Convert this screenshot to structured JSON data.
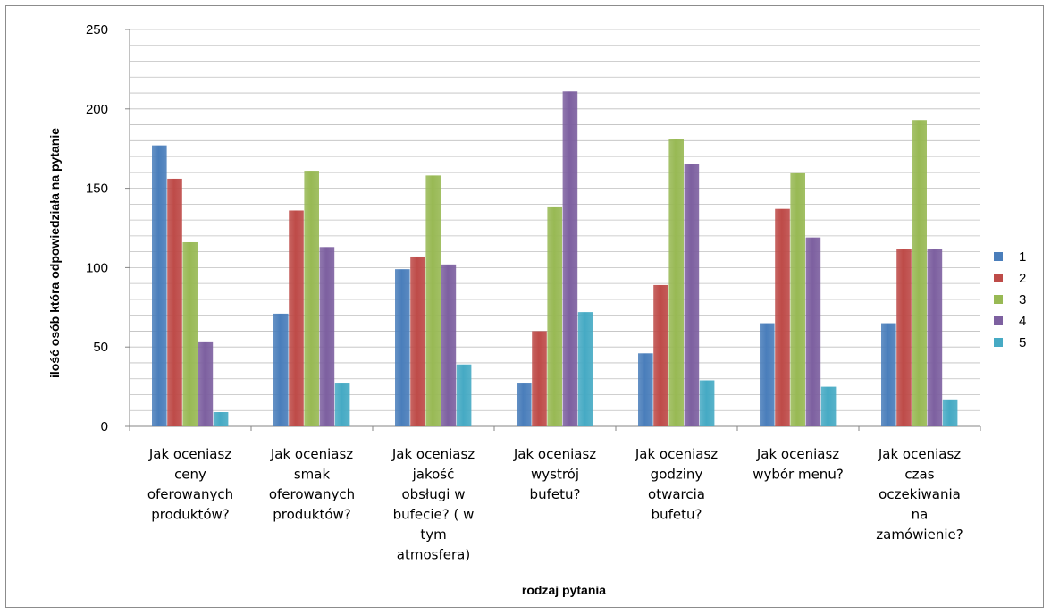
{
  "chart_data": {
    "type": "bar",
    "categories": [
      [
        "Jak oceniasz",
        "ceny",
        "oferowanych",
        "produktów?"
      ],
      [
        "Jak oceniasz",
        "smak",
        "oferowanych",
        "produktów?"
      ],
      [
        "Jak oceniasz",
        "jakość",
        "obsługi w",
        "bufecie? ( w",
        "tym",
        "atmosfera)"
      ],
      [
        "Jak oceniasz",
        "wystrój",
        "bufetu?"
      ],
      [
        "Jak oceniasz",
        "godziny",
        "otwarcia",
        "bufetu?"
      ],
      [
        "Jak oceniasz",
        "wybór menu?"
      ],
      [
        "Jak oceniasz",
        "czas",
        "oczekiwania",
        "na",
        "zamówienie?"
      ]
    ],
    "series": [
      {
        "name": "1",
        "color": "#4a7ebb",
        "values": [
          177,
          71,
          99,
          27,
          46,
          65,
          65
        ]
      },
      {
        "name": "2",
        "color": "#be4b48",
        "values": [
          156,
          136,
          107,
          60,
          89,
          137,
          112
        ]
      },
      {
        "name": "3",
        "color": "#98b954",
        "values": [
          116,
          161,
          158,
          138,
          181,
          160,
          193
        ]
      },
      {
        "name": "4",
        "color": "#7d60a0",
        "values": [
          53,
          113,
          102,
          211,
          165,
          119,
          112
        ]
      },
      {
        "name": "5",
        "color": "#46aac4",
        "values": [
          9,
          27,
          39,
          72,
          29,
          25,
          17
        ]
      }
    ],
    "xlabel": "rodzaj pytania",
    "ylabel": "ilość osób która odpowiedziała na pytanie",
    "ylim": [
      0,
      250
    ],
    "yticks": [
      0,
      50,
      100,
      150,
      200,
      250
    ],
    "ytick_labels": [
      "0",
      "50",
      "100",
      "150",
      "200",
      "250"
    ],
    "grid": true,
    "legend_position": "right"
  }
}
